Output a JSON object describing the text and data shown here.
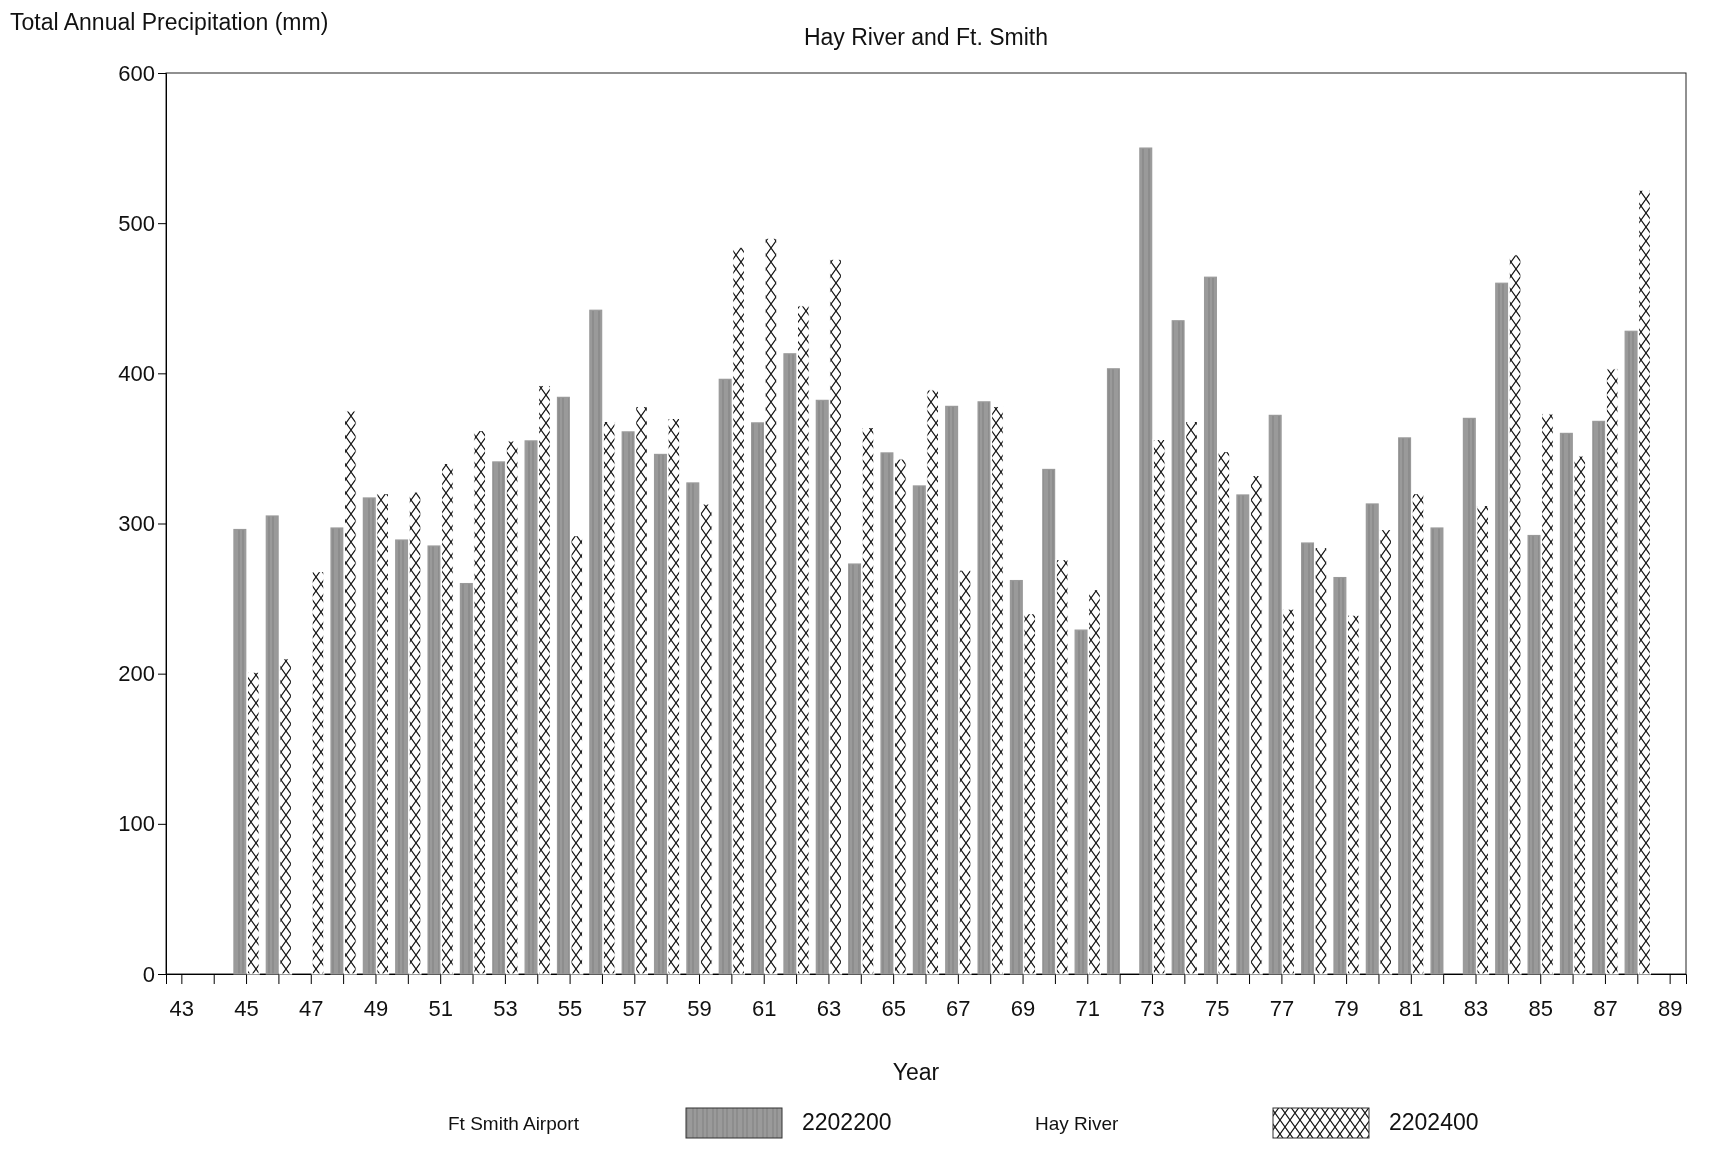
{
  "chart_data": {
    "type": "bar",
    "title": "Hay River and Ft. Smith",
    "xlabel": "Year",
    "ylabel": "Total Annual Precipitation (mm)",
    "categories": [
      "43",
      null,
      "45",
      null,
      "47",
      null,
      "49",
      null,
      "51",
      null,
      "53",
      null,
      "55",
      null,
      "57",
      null,
      "59",
      null,
      "61",
      null,
      "63",
      null,
      "65",
      null,
      "67",
      null,
      "69",
      null,
      "71",
      null,
      "73",
      null,
      "75",
      null,
      "77",
      null,
      "79",
      null,
      "81",
      null,
      "83",
      null,
      "85",
      null,
      "87",
      null,
      "89"
    ],
    "series": [
      {
        "name": "2202200",
        "color": "#9a9a9a",
        "values": [
          null,
          null,
          296,
          305,
          null,
          297,
          317,
          289,
          285,
          260,
          341,
          355,
          384,
          442,
          361,
          346,
          327,
          396,
          367,
          413,
          382,
          273,
          347,
          325,
          378,
          381,
          262,
          336,
          229,
          403,
          550,
          435,
          464,
          319,
          372,
          287,
          264,
          313,
          357,
          297,
          370,
          460,
          292,
          360,
          368,
          428,
          null
        ]
      },
      {
        "name": "2202400",
        "color": "#ffffff",
        "values": [
          null,
          null,
          201,
          210,
          268,
          375,
          320,
          321,
          340,
          362,
          355,
          392,
          292,
          368,
          378,
          370,
          313,
          484,
          490,
          445,
          476,
          364,
          343,
          389,
          269,
          378,
          240,
          276,
          256,
          null,
          356,
          368,
          348,
          332,
          243,
          284,
          239,
          296,
          320,
          null,
          312,
          479,
          373,
          345,
          403,
          522,
          null
        ]
      }
    ],
    "annotations": [
      "Ft Smith Airport",
      "Hay River"
    ],
    "ylim": [
      0,
      600
    ],
    "yticks": [
      0,
      100,
      200,
      300,
      400,
      500,
      600
    ],
    "grid": false,
    "legend": "bottom"
  }
}
